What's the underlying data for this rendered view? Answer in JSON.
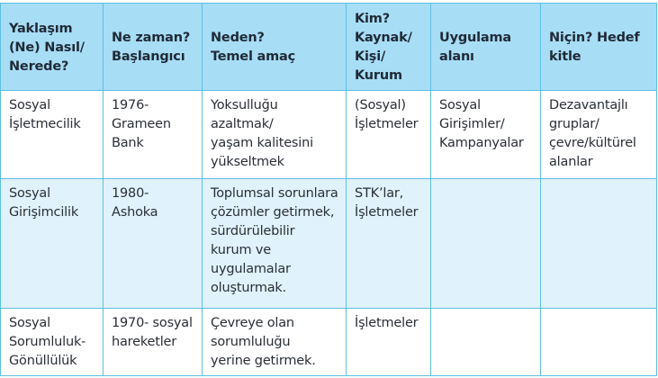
{
  "headers": [
    "Yaklaşım\n(Ne) Nasıl/\nNerede?",
    "Ne zaman?\nBaşlangıcı",
    "Neden?\nTemel amaç",
    "Kim?\nKaynak/\nKişi/\nKurum",
    "Uygulama\nalanı",
    "Niçin? Hedef\nkitle"
  ],
  "rows": [
    [
      "Sosyal\nİşletmecilik",
      "1976-\nGrameen\nBank",
      "Yoksulluğu\nazaltmak/\nyaşam kalitesini\nyükseltmek",
      "(Sosyal)\nİşletmeler",
      "Sosyal\nGirişimler/\nKampanyalar",
      "Dezavantajlı\ngruplar/\nçevre/kültürel\nalanlar"
    ],
    [
      "Sosyal\nGirişimcilik",
      "1980-\nAshoka",
      "Toplumsal sorunlara\nçözümler getirmek,\nsürdürülebilir\nkurum ve\nuygulamalar\noluşturmak.",
      "STK’lar,\nİşletmeler",
      "",
      ""
    ],
    [
      "Sosyal\nSorumluluk-\nGönüllülük",
      "1970- sosyal\nhareketler",
      "Çevreye olan\nsorumluluğu\nyerine getirmek.",
      "İşletmeler",
      "",
      ""
    ]
  ]
}
